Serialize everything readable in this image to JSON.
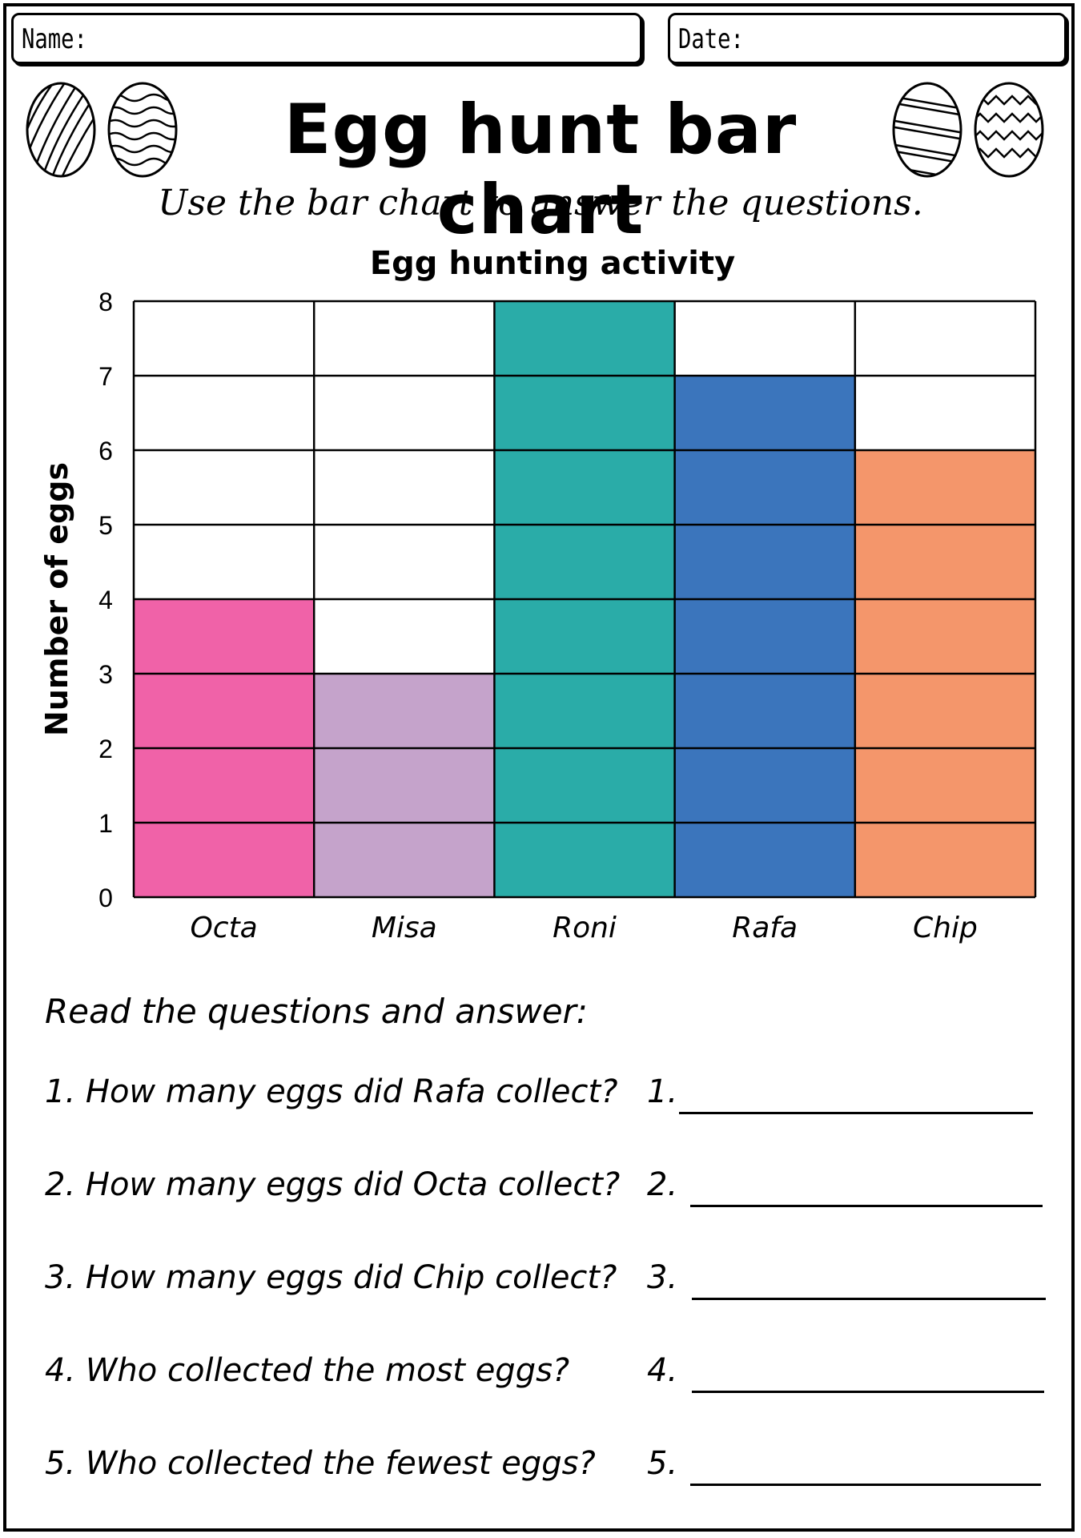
{
  "header": {
    "name_label": "Name:",
    "date_label": "Date:"
  },
  "title": "Egg hunt bar chart",
  "subtitle": "Use the bar chart to answer the questions.",
  "chart_data": {
    "type": "bar",
    "title": "Egg hunting activity",
    "xlabel": "",
    "ylabel": "Number of eggs",
    "categories": [
      "Octa",
      "Misa",
      "Roni",
      "Rafa",
      "Chip"
    ],
    "values": [
      4,
      3,
      8,
      7,
      6
    ],
    "colors": [
      "#f062a8",
      "#c5a3cb",
      "#2aaca8",
      "#3b75bc",
      "#f4966b"
    ],
    "ylim": [
      0,
      8
    ],
    "yticks": [
      "0",
      "1",
      "2",
      "3",
      "4",
      "5",
      "6",
      "7",
      "8"
    ],
    "grid": true,
    "legend": "none"
  },
  "questions": {
    "heading": "Read the questions and answer:",
    "items": [
      {
        "text": "1. How many eggs did Rafa collect?",
        "answer_label": "1."
      },
      {
        "text": "2. How many eggs did Octa collect?",
        "answer_label": "2."
      },
      {
        "text": "3. How many eggs did Chip collect?",
        "answer_label": "3."
      },
      {
        "text": "4. Who collected the most eggs?",
        "answer_label": "4."
      },
      {
        "text": "5. Who collected the fewest eggs?",
        "answer_label": "5."
      }
    ]
  },
  "decorations": [
    "egg-stripes-icon",
    "egg-waves-icon",
    "egg-diagonal-icon",
    "egg-zigzag-icon"
  ]
}
